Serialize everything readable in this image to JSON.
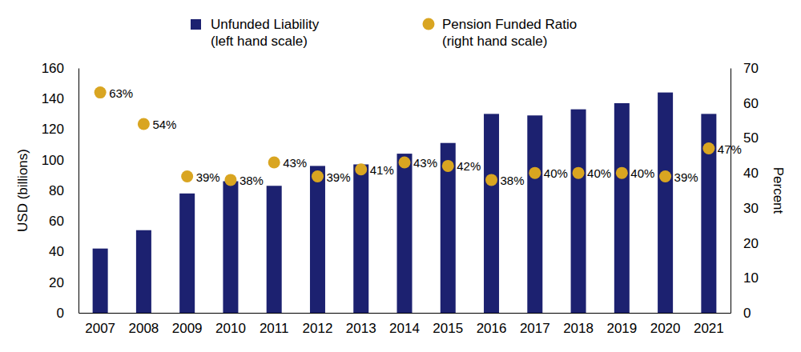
{
  "chart_data": {
    "type": "bar",
    "categories": [
      "2007",
      "2008",
      "2009",
      "2010",
      "2011",
      "2012",
      "2013",
      "2014",
      "2015",
      "2016",
      "2017",
      "2018",
      "2019",
      "2020",
      "2021"
    ],
    "series": [
      {
        "name": "Unfunded Liability (left hand scale)",
        "type": "bar",
        "color": "#1c2170",
        "values": [
          42,
          54,
          78,
          86,
          83,
          96,
          97,
          104,
          111,
          130,
          129,
          133,
          137,
          144,
          130
        ]
      },
      {
        "name": "Pension Funded Ratio (right hand scale)",
        "type": "scatter",
        "axis": "y2",
        "color": "#d9a521",
        "marker": "circle",
        "data_labels": true,
        "values": [
          63,
          54,
          39,
          38,
          43,
          39,
          41,
          43,
          42,
          38,
          40,
          40,
          40,
          39,
          47
        ],
        "value_labels": [
          "63%",
          "54%",
          "39%",
          "38%",
          "43%",
          "39%",
          "41%",
          "43%",
          "42%",
          "38%",
          "40%",
          "40%",
          "40%",
          "39%",
          "47%"
        ]
      }
    ],
    "y_label": "USD (billions)",
    "y2_label": "Percent",
    "ylim": [
      0,
      160
    ],
    "yticks": [
      0,
      20,
      40,
      60,
      80,
      100,
      120,
      140,
      160
    ],
    "y2lim": [
      0,
      70
    ],
    "y2ticks": [
      0,
      10,
      20,
      30,
      40,
      50,
      60,
      70
    ],
    "legend": "top",
    "grid": false
  }
}
